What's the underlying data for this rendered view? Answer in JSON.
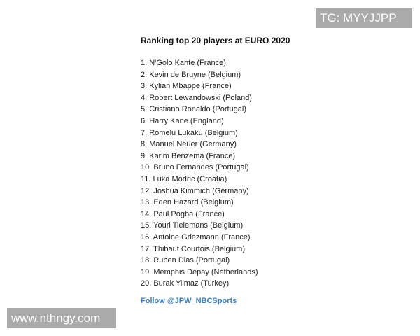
{
  "title": "Ranking top 20 players at EURO 2020",
  "players": [
    "1. N'Golo Kante (France)",
    "2. Kevin de Bruyne (Belgium)",
    "3. Kylian Mbappe (France)",
    "4. Robert Lewandowski (Poland)",
    "5. Cristiano Ronaldo (Portugal)",
    "6. Harry Kane (England)",
    "7. Romelu Lukaku (Belgium)",
    "8. Manuel Neuer (Germany)",
    "9. Karim Benzema (France)",
    "10. Bruno Fernandes (Portugal)",
    "11. Luka Modric (Croatia)",
    "12. Joshua Kimmich (Germany)",
    "13. Eden Hazard (Belgium)",
    "14. Paul Pogba (France)",
    "15. Youri Tielemans (Belgium)",
    "16. Antoine Griezmann (France)",
    "17. Thibaut Courtois (Belgium)",
    "18. Ruben Dias (Portugal)",
    "19. Memphis Depay (Netherlands)",
    "20. Burak Yilmaz (Turkey)"
  ],
  "follow_link": "Follow @JPW_NBCSports",
  "watermarks": {
    "top_right": "TG: MYYJJPP",
    "bottom_left": "www.nthngy.com"
  },
  "colors": {
    "link": "#3a7fc1",
    "watermark_bg": "#aaaaaa"
  }
}
